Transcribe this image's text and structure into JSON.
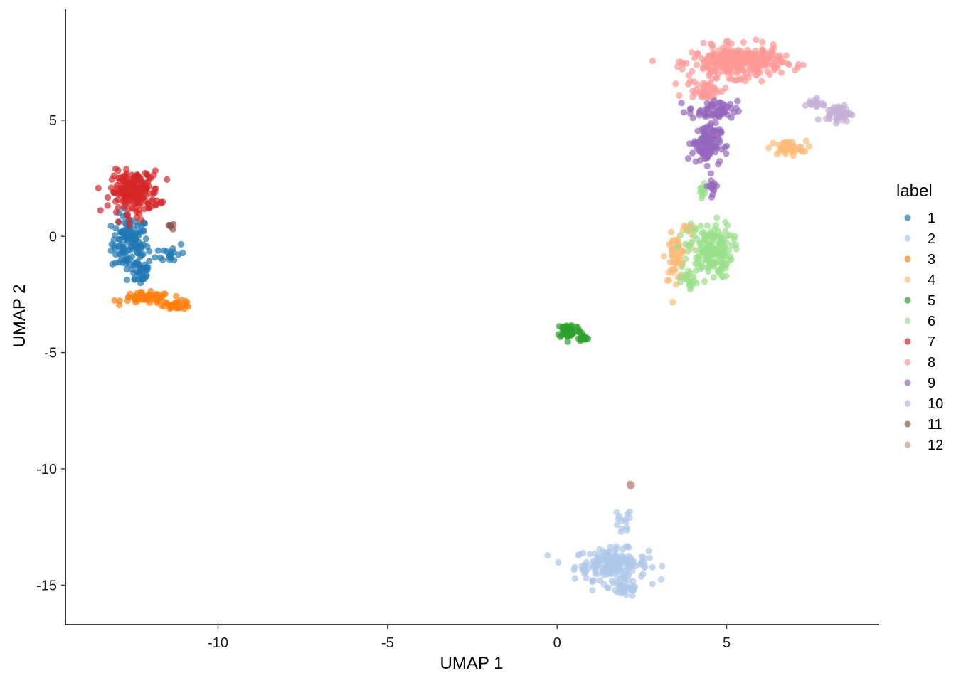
{
  "chart_data": {
    "type": "scatter",
    "title": "",
    "xlabel": "UMAP 1",
    "ylabel": "UMAP 2",
    "xlim": [
      -14.5,
      9.5
    ],
    "ylim": [
      -16.7,
      9.8
    ],
    "x_ticks": [
      -10,
      -5,
      0,
      5
    ],
    "y_ticks": [
      5,
      0,
      -5,
      -10,
      -15
    ],
    "grid": false,
    "legend": {
      "title": "label",
      "position": "right"
    },
    "series": [
      {
        "name": "1",
        "color": "#1F77B4",
        "clusters": [
          [
            -12.6,
            -0.3,
            0.45,
            1.0,
            120
          ],
          [
            -12.3,
            -1.5,
            0.3,
            0.5,
            35
          ],
          [
            -11.4,
            -0.7,
            0.35,
            0.4,
            18
          ]
        ]
      },
      {
        "name": "2",
        "color": "#AEC7E8",
        "clusters": [
          [
            1.6,
            -14.1,
            0.9,
            0.55,
            170
          ],
          [
            2.0,
            -15.1,
            0.4,
            0.35,
            40
          ],
          [
            1.9,
            -12.4,
            0.25,
            0.6,
            14
          ]
        ]
      },
      {
        "name": "3",
        "color": "#FF7F0E",
        "clusters": [
          [
            -12.1,
            -2.65,
            0.6,
            0.2,
            60
          ],
          [
            -11.2,
            -2.95,
            0.35,
            0.15,
            35
          ]
        ]
      },
      {
        "name": "4",
        "color": "#FFBB78",
        "clusters": [
          [
            3.5,
            -0.9,
            0.25,
            0.8,
            60
          ],
          [
            6.8,
            3.8,
            0.45,
            0.25,
            45
          ],
          [
            3.9,
            0.3,
            0.15,
            0.2,
            10
          ]
        ]
      },
      {
        "name": "5",
        "color": "#2CA02C",
        "clusters": [
          [
            0.35,
            -4.05,
            0.3,
            0.28,
            60
          ],
          [
            0.8,
            -4.4,
            0.15,
            0.1,
            15
          ]
        ]
      },
      {
        "name": "6",
        "color": "#98DF8A",
        "clusters": [
          [
            4.5,
            -0.6,
            0.55,
            1.0,
            170
          ],
          [
            4.3,
            1.9,
            0.1,
            0.3,
            10
          ],
          [
            3.9,
            -2.0,
            0.2,
            0.3,
            15
          ]
        ]
      },
      {
        "name": "7",
        "color": "#D62728",
        "clusters": [
          [
            -12.45,
            1.9,
            0.6,
            0.75,
            200
          ]
        ]
      },
      {
        "name": "8",
        "color": "#FF9896",
        "clusters": [
          [
            5.3,
            7.5,
            1.1,
            0.55,
            320
          ],
          [
            4.4,
            6.3,
            0.5,
            0.35,
            40
          ]
        ]
      },
      {
        "name": "9",
        "color": "#9467BD",
        "clusters": [
          [
            4.4,
            4.0,
            0.35,
            0.7,
            110
          ],
          [
            4.6,
            5.4,
            0.6,
            0.35,
            60
          ],
          [
            4.6,
            2.2,
            0.12,
            0.4,
            15
          ]
        ]
      },
      {
        "name": "10",
        "color": "#C5B0D5",
        "clusters": [
          [
            8.3,
            5.3,
            0.3,
            0.3,
            50
          ],
          [
            7.6,
            5.7,
            0.25,
            0.2,
            15
          ]
        ]
      },
      {
        "name": "11",
        "color": "#8C564B",
        "clusters": [
          [
            -11.3,
            0.45,
            0.1,
            0.1,
            6
          ]
        ]
      },
      {
        "name": "12",
        "color": "#C49C94",
        "clusters": [
          [
            2.2,
            -10.7,
            0.07,
            0.1,
            6
          ]
        ]
      }
    ]
  }
}
